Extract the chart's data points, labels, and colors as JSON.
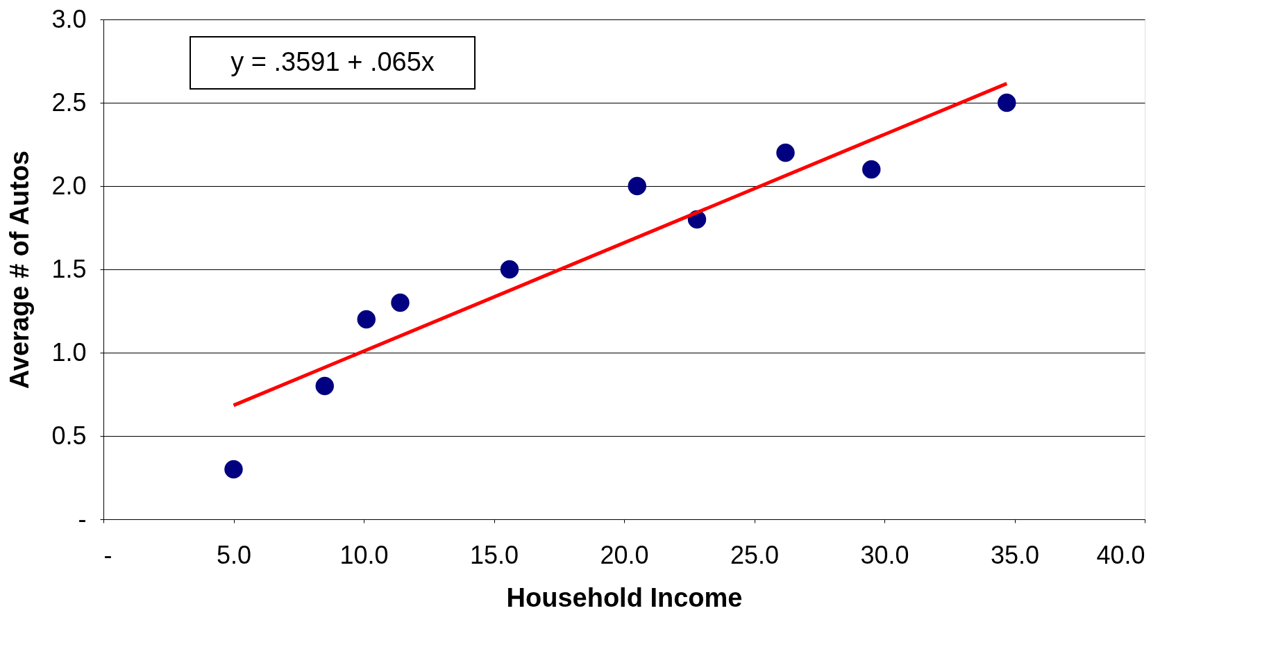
{
  "chart_data": {
    "type": "scatter",
    "xlabel": "Household Income",
    "ylabel": "Average # of Autos",
    "x": [
      5.0,
      8.5,
      10.1,
      11.4,
      15.6,
      20.5,
      22.8,
      26.2,
      29.5,
      34.7
    ],
    "series": [
      {
        "color": "#000080",
        "marker": "circle",
        "values": [
          0.3,
          0.8,
          1.2,
          1.3,
          1.5,
          2.0,
          1.8,
          2.2,
          2.1,
          2.5
        ]
      },
      {
        "type": "line",
        "color": "#ff0000",
        "line_style": "solid",
        "x": [
          5.0,
          34.7
        ],
        "values": [
          0.684,
          2.615
        ]
      }
    ],
    "annotations": [
      "y = .3591 + .065x"
    ],
    "xlim": [
      0,
      40
    ],
    "xticks": [
      {
        "value": 0,
        "label": "-"
      },
      {
        "value": 5,
        "label": "5.0"
      },
      {
        "value": 10,
        "label": "10.0"
      },
      {
        "value": 15,
        "label": "15.0"
      },
      {
        "value": 20,
        "label": "20.0"
      },
      {
        "value": 25,
        "label": "25.0"
      },
      {
        "value": 30,
        "label": "30.0"
      },
      {
        "value": 35,
        "label": "35.0"
      },
      {
        "value": 40,
        "label": "40.0"
      }
    ],
    "ylim": [
      0,
      3
    ],
    "yticks": [
      {
        "value": 0,
        "label": "-"
      },
      0.5,
      {
        "value": 1,
        "label": "1.0"
      },
      1.5,
      {
        "value": 2,
        "label": "2.0"
      },
      2.5,
      {
        "value": 3,
        "label": "3.0"
      }
    ],
    "grid": "y"
  }
}
